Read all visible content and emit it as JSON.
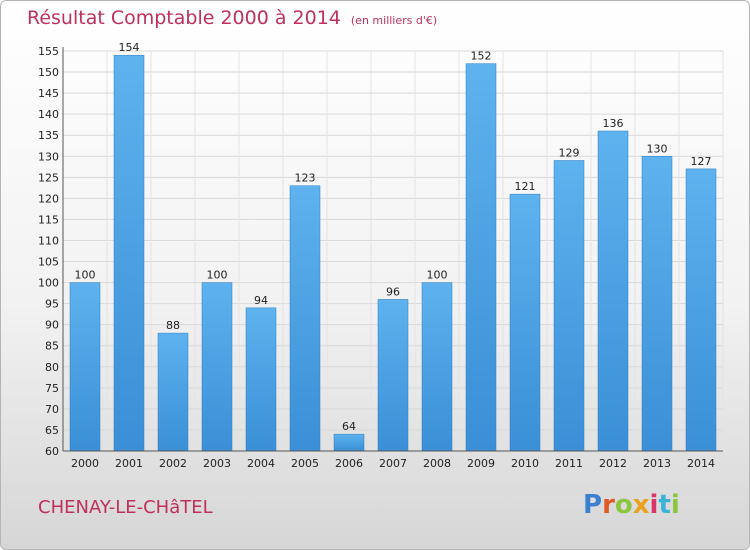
{
  "chart_data": {
    "type": "bar",
    "title": "Résultat Comptable 2000 à 2014",
    "subtitle": "(en milliers d'€)",
    "categories": [
      "2000",
      "2001",
      "2002",
      "2003",
      "2004",
      "2005",
      "2006",
      "2007",
      "2008",
      "2009",
      "2010",
      "2011",
      "2012",
      "2013",
      "2014"
    ],
    "values": [
      100,
      154,
      88,
      100,
      94,
      123,
      64,
      96,
      100,
      152,
      121,
      129,
      136,
      130,
      127
    ],
    "ylim": [
      60,
      155
    ],
    "yticks": [
      60,
      65,
      70,
      75,
      80,
      85,
      90,
      95,
      100,
      105,
      110,
      115,
      120,
      125,
      130,
      135,
      140,
      145,
      150,
      155
    ],
    "grid": true,
    "bar_color": "#3a8fd6",
    "bar_color_light": "#5eb2ee",
    "title_color": "#c0305a"
  },
  "footer": {
    "city": "CHENAY-LE-CHâTEL",
    "logo_letters": [
      {
        "ch": "P",
        "color": "#3b7fd0"
      },
      {
        "ch": "r",
        "color": "#e05a28"
      },
      {
        "ch": "o",
        "color": "#8cc63f"
      },
      {
        "ch": "x",
        "color": "#e8a21d"
      },
      {
        "ch": "i",
        "color": "#d8356b"
      },
      {
        "ch": "t",
        "color": "#3bb3d8"
      },
      {
        "ch": "i",
        "color": "#8cc63f"
      }
    ]
  }
}
